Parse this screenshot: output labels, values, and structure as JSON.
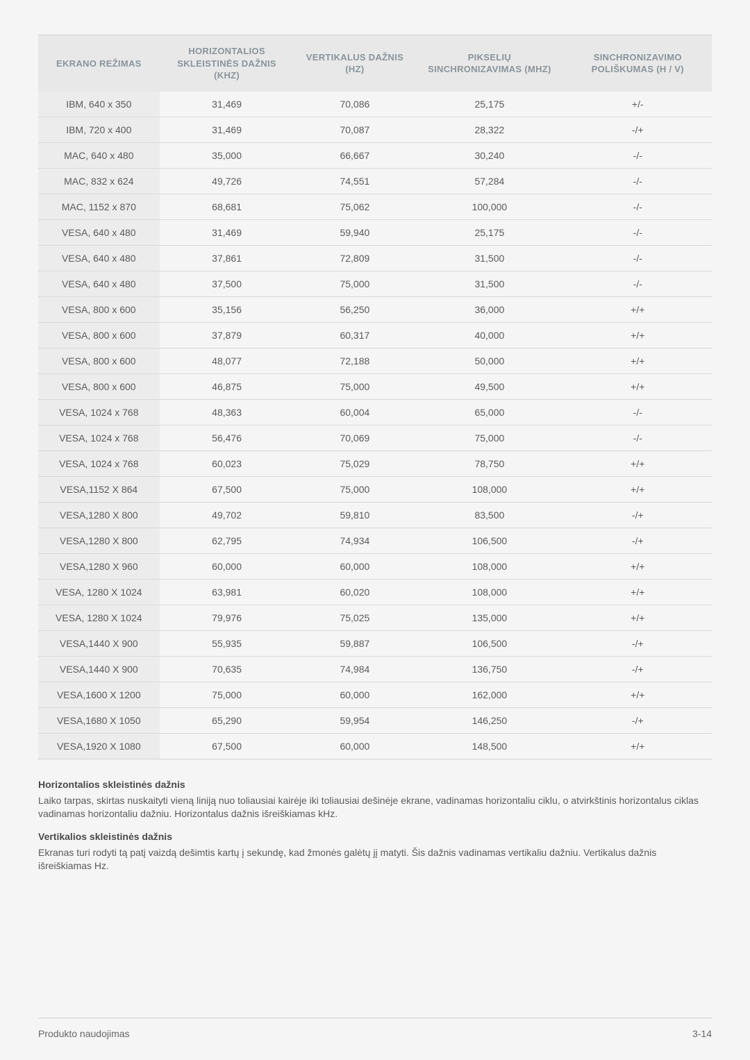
{
  "table": {
    "headers": [
      "EKRANO REŽIMAS",
      "HORIZONTALIOS SKLEISTINĖS DAŽNIS (KHZ)",
      "VERTIKALUS DAŽNIS (HZ)",
      "PIKSELIŲ SINCHRONIZAVIMAS (MHZ)",
      "SINCHRONIZAVIMO POLIŠKUMAS (H / V)"
    ],
    "rows": [
      [
        "IBM, 640 x 350",
        "31,469",
        "70,086",
        "25,175",
        "+/-"
      ],
      [
        "IBM, 720 x 400",
        "31,469",
        "70,087",
        "28,322",
        "-/+"
      ],
      [
        "MAC, 640 x 480",
        "35,000",
        "66,667",
        "30,240",
        "-/-"
      ],
      [
        "MAC, 832 x 624",
        "49,726",
        "74,551",
        "57,284",
        "-/-"
      ],
      [
        "MAC, 1152 x 870",
        "68,681",
        "75,062",
        "100,000",
        "-/-"
      ],
      [
        "VESA, 640 x 480",
        "31,469",
        "59,940",
        "25,175",
        "-/-"
      ],
      [
        "VESA, 640 x 480",
        "37,861",
        "72,809",
        "31,500",
        "-/-"
      ],
      [
        "VESA, 640 x 480",
        "37,500",
        "75,000",
        "31,500",
        "-/-"
      ],
      [
        "VESA, 800 x 600",
        "35,156",
        "56,250",
        "36,000",
        "+/+"
      ],
      [
        "VESA, 800 x 600",
        "37,879",
        "60,317",
        "40,000",
        "+/+"
      ],
      [
        "VESA, 800 x 600",
        "48,077",
        "72,188",
        "50,000",
        "+/+"
      ],
      [
        "VESA, 800 x 600",
        "46,875",
        "75,000",
        "49,500",
        "+/+"
      ],
      [
        "VESA, 1024 x 768",
        "48,363",
        "60,004",
        "65,000",
        "-/-"
      ],
      [
        "VESA, 1024 x 768",
        "56,476",
        "70,069",
        "75,000",
        "-/-"
      ],
      [
        "VESA, 1024 x 768",
        "60,023",
        "75,029",
        "78,750",
        "+/+"
      ],
      [
        "VESA,1152 X 864",
        "67,500",
        "75,000",
        "108,000",
        "+/+"
      ],
      [
        "VESA,1280 X 800",
        "49,702",
        "59,810",
        "83,500",
        "-/+"
      ],
      [
        "VESA,1280 X 800",
        "62,795",
        "74,934",
        "106,500",
        "-/+"
      ],
      [
        "VESA,1280 X 960",
        "60,000",
        "60,000",
        "108,000",
        "+/+"
      ],
      [
        "VESA, 1280 X 1024",
        "63,981",
        "60,020",
        "108,000",
        "+/+"
      ],
      [
        "VESA, 1280 X 1024",
        "79,976",
        "75,025",
        "135,000",
        "+/+"
      ],
      [
        "VESA,1440 X 900",
        "55,935",
        "59,887",
        "106,500",
        "-/+"
      ],
      [
        "VESA,1440 X 900",
        "70,635",
        "74,984",
        "136,750",
        "-/+"
      ],
      [
        "VESA,1600 X 1200",
        "75,000",
        "60,000",
        "162,000",
        "+/+"
      ],
      [
        "VESA,1680 X 1050",
        "65,290",
        "59,954",
        "146,250",
        "-/+"
      ],
      [
        "VESA,1920 X 1080",
        "67,500",
        "60,000",
        "148,500",
        "+/+"
      ]
    ]
  },
  "notes": {
    "heading1": "Horizontalios skleistinės dažnis",
    "para1": "Laiko tarpas, skirtas nuskaityti vieną liniją nuo toliausiai kairėje iki toliausiai dešinėje ekrane, vadinamas horizontaliu ciklu, o atvirkštinis horizontalus ciklas vadinamas horizontaliu dažniu. Horizontalus dažnis išreiškiamas kHz.",
    "heading2": "Vertikalios skleistinės dažnis",
    "para2": "Ekranas turi rodyti tą patį vaizdą dešimtis kartų į sekundę, kad žmonės galėtų jį matyti. Šis dažnis vadinamas vertikaliu dažniu. Vertikalus dažnis išreiškiamas Hz."
  },
  "footer": {
    "left": "Produkto naudojimas",
    "right": "3-14"
  }
}
